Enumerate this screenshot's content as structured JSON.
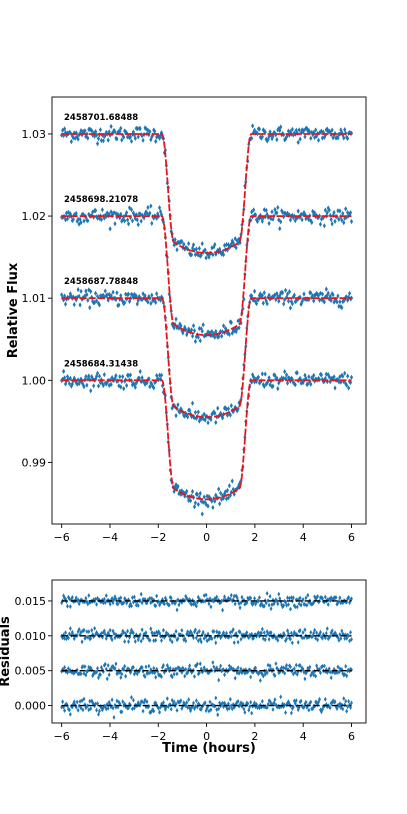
{
  "chart_data": [
    {
      "type": "scatter",
      "title": "",
      "xlabel": "",
      "ylabel": "Relative Flux",
      "xlim": [
        -6.4,
        6.6
      ],
      "ylim": [
        0.9825,
        1.0345
      ],
      "xticks": [
        -6,
        -4,
        -2,
        0,
        2,
        4,
        6
      ],
      "xtick_labels": [
        "−6",
        "−4",
        "−2",
        "0",
        "2",
        "4",
        "6"
      ],
      "yticks": [
        0.99,
        1.0,
        1.01,
        1.02,
        1.03
      ],
      "ytick_labels": [
        "0.99",
        "1.00",
        "1.01",
        "1.02",
        "1.03"
      ],
      "grid": false,
      "marker": "diamond",
      "point_color": "#1f77b4",
      "model_color": "#e8141c",
      "transit": {
        "depth": 0.0145,
        "ingress_start": -1.85,
        "flat_start": -1.35,
        "flat_end": 1.35,
        "egress_end": 1.85,
        "x_range": [
          -6,
          6
        ],
        "noise_sigma": 0.00045
      },
      "series": [
        {
          "label": "2458701.68488",
          "baseline": 1.03
        },
        {
          "label": "2458698.21078",
          "baseline": 1.02
        },
        {
          "label": "2458687.78848",
          "baseline": 1.01
        },
        {
          "label": "2458684.31438",
          "baseline": 1.0
        }
      ]
    },
    {
      "type": "scatter",
      "title": "",
      "xlabel": "Time (hours)",
      "ylabel": "Residuals",
      "xlim": [
        -6.4,
        6.6
      ],
      "ylim": [
        -0.0025,
        0.018
      ],
      "xticks": [
        -6,
        -4,
        -2,
        0,
        2,
        4,
        6
      ],
      "xtick_labels": [
        "−6",
        "−4",
        "−2",
        "0",
        "2",
        "4",
        "6"
      ],
      "yticks": [
        0.0,
        0.005,
        0.01,
        0.015
      ],
      "ytick_labels": [
        "0.000",
        "0.005",
        "0.010",
        "0.015"
      ],
      "grid": false,
      "marker": "diamond",
      "point_color": "#1f77b4",
      "model_color": "#000000",
      "noise_sigma": 0.00045,
      "series": [
        {
          "offset": 0.015
        },
        {
          "offset": 0.01
        },
        {
          "offset": 0.005
        },
        {
          "offset": 0.0
        }
      ]
    }
  ]
}
